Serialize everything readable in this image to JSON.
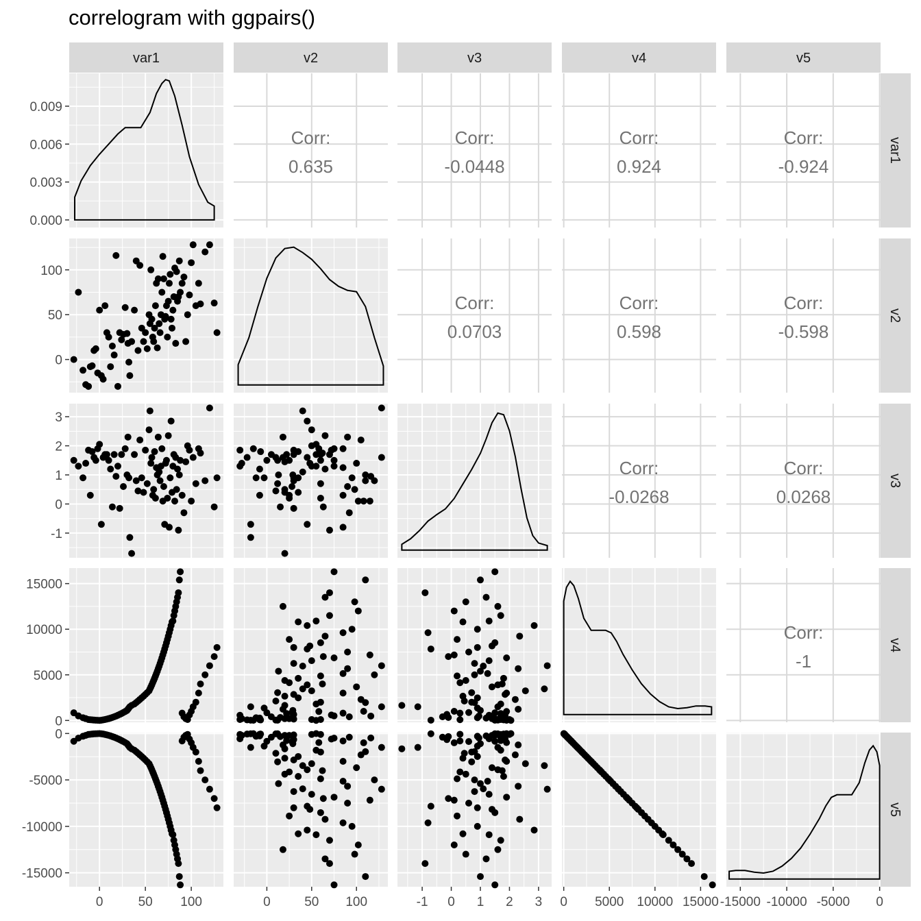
{
  "title": "correlogram with ggpairs()",
  "chart_data": {
    "type": "scatter-matrix",
    "title": "correlogram with ggpairs()",
    "variables": [
      "var1",
      "v2",
      "v3",
      "v4",
      "v5"
    ],
    "colors": {
      "panel_bg": "#ebebeb",
      "strip_bg": "#d9d9d9",
      "grid": "#ffffff",
      "blank_grid": "#d9d9d9",
      "points": "#000000",
      "corr_text": "#737373",
      "tick_text": "#4d4d4d"
    },
    "columns": [
      {
        "name": "var1",
        "range": [
          -33,
          135
        ],
        "ticks": [
          0,
          50,
          100
        ],
        "tick_labels": [
          "0",
          "50",
          "100"
        ],
        "minor": [
          -25,
          25,
          75,
          125
        ]
      },
      {
        "name": "v2",
        "range": [
          -37,
          135
        ],
        "ticks": [
          0,
          50,
          100
        ],
        "tick_labels": [
          "0",
          "50",
          "100"
        ],
        "minor": [
          -25,
          25,
          75,
          125
        ]
      },
      {
        "name": "v3",
        "range": [
          -1.85,
          3.45
        ],
        "ticks": [
          -1,
          0,
          1,
          2,
          3
        ],
        "tick_labels": [
          "-1",
          "0",
          "1",
          "2",
          "3"
        ],
        "minor": [
          -1.5,
          -0.5,
          0.5,
          1.5,
          2.5
        ]
      },
      {
        "name": "v4",
        "range": [
          -200,
          16700
        ],
        "ticks": [
          0,
          5000,
          10000,
          15000
        ],
        "tick_labels": [
          "0",
          "5000",
          "10000",
          "15000"
        ],
        "minor": [
          2500,
          7500,
          12500
        ]
      },
      {
        "name": "v5",
        "range": [
          -16500,
          100
        ],
        "ticks": [
          -15000,
          -10000,
          -5000,
          0
        ],
        "tick_labels": [
          "-15000",
          "-10000",
          "-5000",
          "0"
        ],
        "minor": [
          -12500,
          -7500,
          -2500
        ]
      }
    ],
    "rows": [
      {
        "name": "var1",
        "range": [
          -0.0006,
          0.0116
        ],
        "ticks": [
          0,
          0.003,
          0.006,
          0.009
        ],
        "tick_labels": [
          "0.000",
          "0.003",
          "0.006",
          "0.009"
        ],
        "minor": [
          0.0015,
          0.0045,
          0.0075,
          0.0105
        ]
      },
      {
        "name": "v2",
        "range": [
          -37,
          135
        ],
        "ticks": [
          0,
          50,
          100
        ],
        "tick_labels": [
          "0",
          "50",
          "100"
        ],
        "minor": [
          -25,
          25,
          75,
          125
        ]
      },
      {
        "name": "v3",
        "range": [
          -1.85,
          3.45
        ],
        "ticks": [
          -1,
          0,
          1,
          2,
          3
        ],
        "tick_labels": [
          "-1",
          "0",
          "1",
          "2",
          "3"
        ],
        "minor": [
          -1.5,
          -0.5,
          0.5,
          1.5,
          2.5
        ]
      },
      {
        "name": "v4",
        "range": [
          -200,
          16700
        ],
        "ticks": [
          0,
          5000,
          10000,
          15000
        ],
        "tick_labels": [
          "0",
          "5000",
          "10000",
          "15000"
        ],
        "minor": [
          2500,
          7500,
          12500
        ]
      },
      {
        "name": "v5",
        "range": [
          -16500,
          100
        ],
        "ticks": [
          -15000,
          -10000,
          -5000,
          0
        ],
        "tick_labels": [
          "-15000",
          "-10000",
          "-5000",
          "0"
        ],
        "minor": [
          -12500,
          -7500,
          -2500
        ]
      }
    ],
    "correlations": [
      {
        "row": 0,
        "col": 1,
        "label": "Corr:",
        "value": "0.635"
      },
      {
        "row": 0,
        "col": 2,
        "label": "Corr:",
        "value": "-0.0448"
      },
      {
        "row": 0,
        "col": 3,
        "label": "Corr:",
        "value": "0.924"
      },
      {
        "row": 0,
        "col": 4,
        "label": "Corr:",
        "value": "-0.924"
      },
      {
        "row": 1,
        "col": 2,
        "label": "Corr:",
        "value": "0.0703"
      },
      {
        "row": 1,
        "col": 3,
        "label": "Corr:",
        "value": "0.598"
      },
      {
        "row": 1,
        "col": 4,
        "label": "Corr:",
        "value": "-0.598"
      },
      {
        "row": 2,
        "col": 3,
        "label": "Corr:",
        "value": "-0.0268"
      },
      {
        "row": 2,
        "col": 4,
        "label": "Corr:",
        "value": "0.0268"
      },
      {
        "row": 3,
        "col": 4,
        "label": "Corr:",
        "value": "-1"
      }
    ],
    "densities": {
      "var1": {
        "x": [
          -27,
          -20,
          -10,
          0,
          10,
          20,
          28,
          35,
          45,
          55,
          62,
          68,
          72,
          76,
          82,
          90,
          98,
          108,
          118,
          125
        ],
        "y": [
          0.0018,
          0.0031,
          0.0043,
          0.0052,
          0.006,
          0.0068,
          0.0073,
          0.0073,
          0.0073,
          0.0085,
          0.01,
          0.0108,
          0.0111,
          0.011,
          0.0098,
          0.0075,
          0.005,
          0.0028,
          0.0014,
          0.0011
        ]
      },
      "v2": {
        "y_range": [
          0,
          0.0105
        ],
        "x": [
          -32,
          -20,
          -10,
          0,
          10,
          20,
          30,
          40,
          50,
          60,
          70,
          80,
          90,
          100,
          110,
          120,
          130
        ],
        "y": [
          0.0015,
          0.0035,
          0.0058,
          0.0079,
          0.0094,
          0.0101,
          0.0102,
          0.0098,
          0.0093,
          0.0086,
          0.0078,
          0.0073,
          0.007,
          0.0069,
          0.0058,
          0.0035,
          0.0014
        ]
      },
      "v3": {
        "y_range": [
          0,
          0.44
        ],
        "x": [
          -1.7,
          -1.4,
          -1.1,
          -0.8,
          -0.5,
          -0.2,
          0.1,
          0.4,
          0.7,
          1.0,
          1.2,
          1.4,
          1.6,
          1.8,
          2.0,
          2.2,
          2.4,
          2.6,
          2.8,
          3.0,
          3.3
        ],
        "y": [
          0.018,
          0.035,
          0.06,
          0.09,
          0.11,
          0.128,
          0.16,
          0.205,
          0.25,
          0.3,
          0.345,
          0.395,
          0.425,
          0.42,
          0.37,
          0.29,
          0.19,
          0.1,
          0.045,
          0.022,
          0.014
        ]
      },
      "v4": {
        "y_range": [
          0,
          0.000165
        ],
        "x": [
          0,
          300,
          700,
          1100,
          1600,
          2200,
          3000,
          3800,
          4600,
          5200,
          5800,
          6500,
          7500,
          8500,
          9500,
          10500,
          11500,
          12500,
          13500,
          14500,
          15500,
          16200
        ],
        "y": [
          0.000132,
          0.000148,
          0.000155,
          0.00015,
          0.000135,
          0.000112,
          9.8e-05,
          9.8e-05,
          9.8e-05,
          9.5e-05,
          8.5e-05,
          7e-05,
          5.2e-05,
          3.6e-05,
          2.4e-05,
          1.5e-05,
          9e-06,
          7e-06,
          8e-06,
          1e-05,
          1e-05,
          9e-06
        ]
      },
      "v5": {
        "y_range": [
          0,
          0.000165
        ],
        "x": [
          -16200,
          -15500,
          -14500,
          -13500,
          -12500,
          -11500,
          -10500,
          -9500,
          -8500,
          -7500,
          -6500,
          -5800,
          -5200,
          -4600,
          -3800,
          -3000,
          -2200,
          -1600,
          -1100,
          -700,
          -300,
          0
        ],
        "y": [
          9e-06,
          1e-05,
          1e-05,
          8e-06,
          7e-06,
          9e-06,
          1.5e-05,
          2.4e-05,
          3.6e-05,
          5.2e-05,
          7e-05,
          8.5e-05,
          9.5e-05,
          9.8e-05,
          9.8e-05,
          9.8e-05,
          0.000112,
          0.000135,
          0.00015,
          0.000155,
          0.000148,
          0.000132
        ]
      }
    },
    "points": {
      "var1": [
        -28,
        -23,
        -18,
        -15,
        -12,
        -10,
        -8,
        -6,
        -4,
        -2,
        0,
        2,
        4,
        6,
        8,
        10,
        12,
        14,
        16,
        18,
        20,
        22,
        24,
        26,
        28,
        30,
        31,
        32,
        33,
        35,
        38,
        40,
        42,
        44,
        46,
        48,
        50,
        52,
        54,
        55,
        56,
        57,
        58,
        59,
        60,
        61,
        62,
        63,
        64,
        65,
        66,
        67,
        68,
        69,
        70,
        71,
        72,
        73,
        74,
        75,
        76,
        77,
        78,
        79,
        80,
        81,
        82,
        83,
        84,
        85,
        86,
        87,
        88,
        90,
        92,
        94,
        96,
        98,
        100,
        102,
        105,
        108,
        110,
        115,
        120,
        125,
        128
      ],
      "v2": [
        0,
        75,
        -12,
        -28,
        -30,
        -8,
        -7,
        10,
        12,
        -15,
        55,
        -18,
        -22,
        60,
        30,
        25,
        -8,
        15,
        5,
        116,
        -30,
        30,
        22,
        28,
        58,
        29,
        18,
        -3,
        -18,
        20,
        55,
        110,
        10,
        105,
        35,
        20,
        30,
        12,
        50,
        40,
        100,
        45,
        25,
        20,
        35,
        60,
        85,
        13,
        90,
        40,
        30,
        50,
        75,
        115,
        90,
        45,
        48,
        60,
        25,
        65,
        85,
        95,
        45,
        35,
        55,
        70,
        102,
        18,
        98,
        65,
        70,
        110,
        75,
        85,
        92,
        20,
        50,
        72,
        108,
        128,
        60,
        85,
        62,
        120,
        128,
        63,
        30
      ],
      "v3": [
        1.5,
        1.3,
        0.9,
        1.4,
        1.85,
        0.3,
        1.8,
        1.6,
        1.5,
        1.9,
        2.05,
        -0.7,
        1.6,
        1.7,
        1.7,
        1.5,
        1.2,
        -0.1,
        1.7,
        0.95,
        1.3,
        -0.15,
        1.7,
        0.6,
        1.9,
        1.0,
        2.3,
        0.9,
        -1.15,
        -1.7,
        1.7,
        0.8,
        0.45,
        2.2,
        0.9,
        0.4,
        1.85,
        0.7,
        2.55,
        3.2,
        1.4,
        1.6,
        0.3,
        0.5,
        1.8,
        0.2,
        1.25,
        1.0,
        2.3,
        1.1,
        0.8,
        1.3,
        1.9,
        0.1,
        0.6,
        -0.7,
        1.4,
        1.5,
        0.2,
        2.35,
        -0.8,
        0.9,
        2.85,
        0.4,
        1.3,
        1.7,
        0.1,
        1.6,
        0.5,
        1.2,
        -0.9,
        1.0,
        1.5,
        0.3,
        -0.3,
        1.45,
        2.0,
        1.85,
        0.1,
        1.6,
        0.7,
        1.9,
        1.75,
        0.8,
        3.3,
        -0.1,
        0.9
      ],
      "v4": [
        840,
        500,
        300,
        200,
        100,
        80,
        60,
        40,
        30,
        20,
        10,
        30,
        60,
        100,
        150,
        200,
        260,
        330,
        400,
        480,
        570,
        660,
        760,
        870,
        980,
        1100,
        1230,
        1360,
        1500,
        1650,
        1800,
        1960,
        2130,
        2300,
        2480,
        2660,
        2850,
        3050,
        3250,
        3460,
        3680,
        3900,
        4140,
        4380,
        4620,
        4880,
        5140,
        5400,
        5680,
        5960,
        6250,
        6550,
        6860,
        7180,
        7500,
        7830,
        8170,
        8520,
        8880,
        9240,
        9620,
        10000,
        10400,
        10800,
        10900,
        11500,
        12000,
        12500,
        13000,
        13500,
        14000,
        15400,
        16300,
        800,
        400,
        200,
        100,
        600,
        1000,
        1500,
        2000,
        3000,
        4000,
        5000,
        6000,
        7000,
        8000
      ],
      "v5": [
        -840,
        -500,
        -300,
        -200,
        -100,
        -80,
        -60,
        -40,
        -30,
        -20,
        -10,
        -30,
        -60,
        -100,
        -150,
        -200,
        -260,
        -330,
        -400,
        -480,
        -570,
        -660,
        -760,
        -870,
        -980,
        -1100,
        -1230,
        -1360,
        -1500,
        -1650,
        -1800,
        -1960,
        -2130,
        -2300,
        -2480,
        -2660,
        -2850,
        -3050,
        -3250,
        -3460,
        -3680,
        -3900,
        -4140,
        -4380,
        -4620,
        -4880,
        -5140,
        -5400,
        -5680,
        -5960,
        -6250,
        -6550,
        -6860,
        -7180,
        -7500,
        -7830,
        -8170,
        -8520,
        -8880,
        -9240,
        -9620,
        -10000,
        -10400,
        -10800,
        -10900,
        -11500,
        -12000,
        -12500,
        -13000,
        -13500,
        -14000,
        -15400,
        -16300,
        -800,
        -400,
        -200,
        -100,
        -600,
        -1000,
        -1500,
        -2000,
        -3000,
        -4000,
        -5000,
        -6000,
        -7000,
        -8000
      ]
    }
  }
}
